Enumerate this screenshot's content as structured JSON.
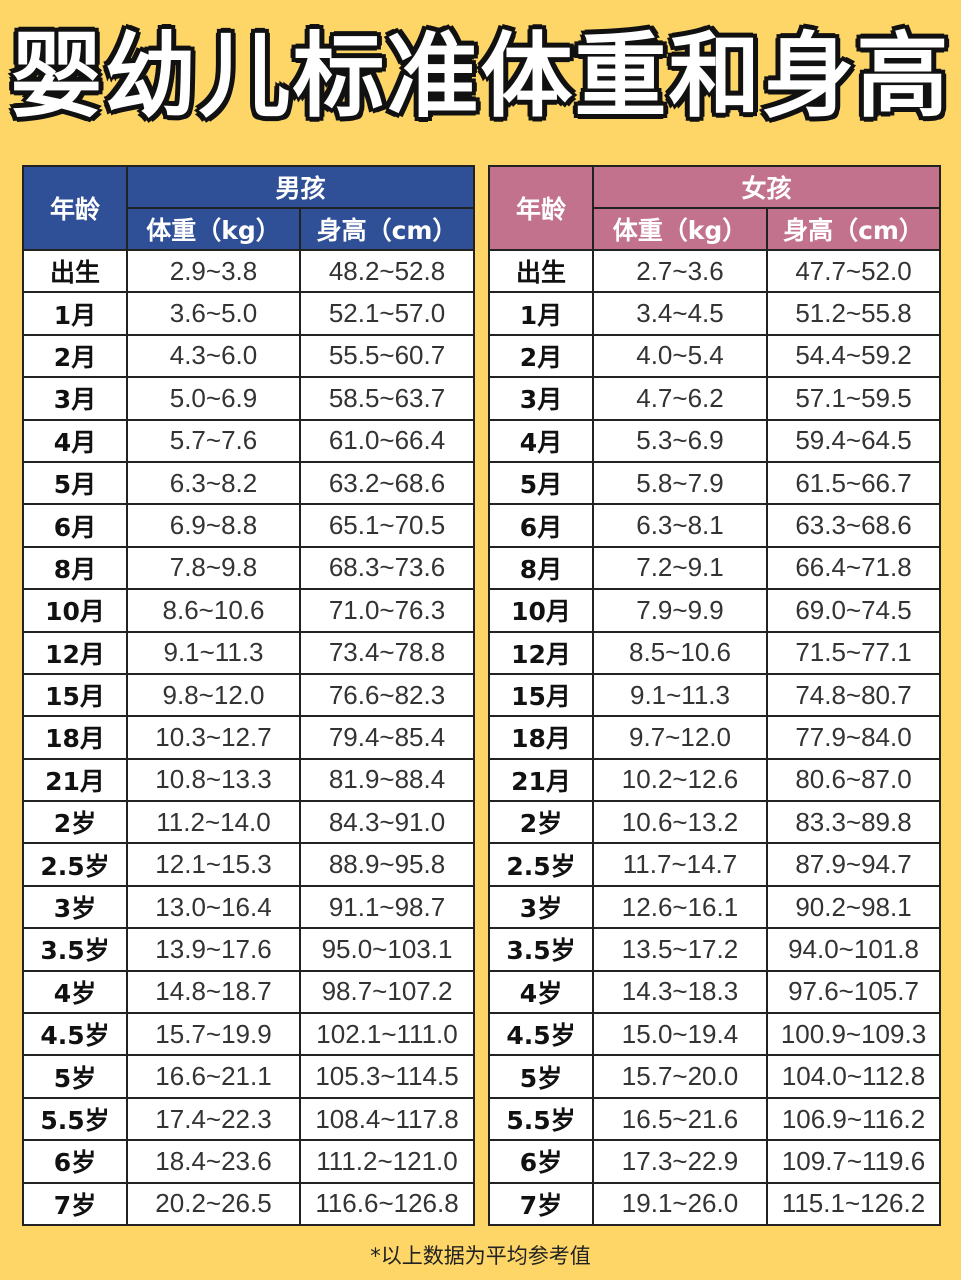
{
  "title": "婴幼儿标准体重和身高",
  "footnote": "*以上数据为平均参考值",
  "boys": {
    "age_header": "年龄",
    "group_header": "男孩",
    "weight_header": "体重（kg）",
    "height_header": "身高（cm）",
    "rows": [
      {
        "age": "出生",
        "weight": "2.9~3.8",
        "height": "48.2~52.8"
      },
      {
        "age": "1月",
        "weight": "3.6~5.0",
        "height": "52.1~57.0"
      },
      {
        "age": "2月",
        "weight": "4.3~6.0",
        "height": "55.5~60.7"
      },
      {
        "age": "3月",
        "weight": "5.0~6.9",
        "height": "58.5~63.7"
      },
      {
        "age": "4月",
        "weight": "5.7~7.6",
        "height": "61.0~66.4"
      },
      {
        "age": "5月",
        "weight": "6.3~8.2",
        "height": "63.2~68.6"
      },
      {
        "age": "6月",
        "weight": "6.9~8.8",
        "height": "65.1~70.5"
      },
      {
        "age": "8月",
        "weight": "7.8~9.8",
        "height": "68.3~73.6"
      },
      {
        "age": "10月",
        "weight": "8.6~10.6",
        "height": "71.0~76.3"
      },
      {
        "age": "12月",
        "weight": "9.1~11.3",
        "height": "73.4~78.8"
      },
      {
        "age": "15月",
        "weight": "9.8~12.0",
        "height": "76.6~82.3"
      },
      {
        "age": "18月",
        "weight": "10.3~12.7",
        "height": "79.4~85.4"
      },
      {
        "age": "21月",
        "weight": "10.8~13.3",
        "height": "81.9~88.4"
      },
      {
        "age": "2岁",
        "weight": "11.2~14.0",
        "height": "84.3~91.0"
      },
      {
        "age": "2.5岁",
        "weight": "12.1~15.3",
        "height": "88.9~95.8"
      },
      {
        "age": "3岁",
        "weight": "13.0~16.4",
        "height": "91.1~98.7"
      },
      {
        "age": "3.5岁",
        "weight": "13.9~17.6",
        "height": "95.0~103.1"
      },
      {
        "age": "4岁",
        "weight": "14.8~18.7",
        "height": "98.7~107.2"
      },
      {
        "age": "4.5岁",
        "weight": "15.7~19.9",
        "height": "102.1~111.0"
      },
      {
        "age": "5岁",
        "weight": "16.6~21.1",
        "height": "105.3~114.5"
      },
      {
        "age": "5.5岁",
        "weight": "17.4~22.3",
        "height": "108.4~117.8"
      },
      {
        "age": "6岁",
        "weight": "18.4~23.6",
        "height": "111.2~121.0"
      },
      {
        "age": "7岁",
        "weight": "20.2~26.5",
        "height": "116.6~126.8"
      }
    ]
  },
  "girls": {
    "age_header": "年龄",
    "group_header": "女孩",
    "weight_header": "体重（kg）",
    "height_header": "身高（cm）",
    "rows": [
      {
        "age": "出生",
        "weight": "2.7~3.6",
        "height": "47.7~52.0"
      },
      {
        "age": "1月",
        "weight": "3.4~4.5",
        "height": "51.2~55.8"
      },
      {
        "age": "2月",
        "weight": "4.0~5.4",
        "height": "54.4~59.2"
      },
      {
        "age": "3月",
        "weight": "4.7~6.2",
        "height": "57.1~59.5"
      },
      {
        "age": "4月",
        "weight": "5.3~6.9",
        "height": "59.4~64.5"
      },
      {
        "age": "5月",
        "weight": "5.8~7.9",
        "height": "61.5~66.7"
      },
      {
        "age": "6月",
        "weight": "6.3~8.1",
        "height": "63.3~68.6"
      },
      {
        "age": "8月",
        "weight": "7.2~9.1",
        "height": "66.4~71.8"
      },
      {
        "age": "10月",
        "weight": "7.9~9.9",
        "height": "69.0~74.5"
      },
      {
        "age": "12月",
        "weight": "8.5~10.6",
        "height": "71.5~77.1"
      },
      {
        "age": "15月",
        "weight": "9.1~11.3",
        "height": "74.8~80.7"
      },
      {
        "age": "18月",
        "weight": "9.7~12.0",
        "height": "77.9~84.0"
      },
      {
        "age": "21月",
        "weight": "10.2~12.6",
        "height": "80.6~87.0"
      },
      {
        "age": "2岁",
        "weight": "10.6~13.2",
        "height": "83.3~89.8"
      },
      {
        "age": "2.5岁",
        "weight": "11.7~14.7",
        "height": "87.9~94.7"
      },
      {
        "age": "3岁",
        "weight": "12.6~16.1",
        "height": "90.2~98.1"
      },
      {
        "age": "3.5岁",
        "weight": "13.5~17.2",
        "height": "94.0~101.8"
      },
      {
        "age": "4岁",
        "weight": "14.3~18.3",
        "height": "97.6~105.7"
      },
      {
        "age": "4.5岁",
        "weight": "15.0~19.4",
        "height": "100.9~109.3"
      },
      {
        "age": "5岁",
        "weight": "15.7~20.0",
        "height": "104.0~112.8"
      },
      {
        "age": "5.5岁",
        "weight": "16.5~21.6",
        "height": "106.9~116.2"
      },
      {
        "age": "6岁",
        "weight": "17.3~22.9",
        "height": "109.7~119.6"
      },
      {
        "age": "7岁",
        "weight": "19.1~26.0",
        "height": "115.1~126.2"
      }
    ]
  }
}
